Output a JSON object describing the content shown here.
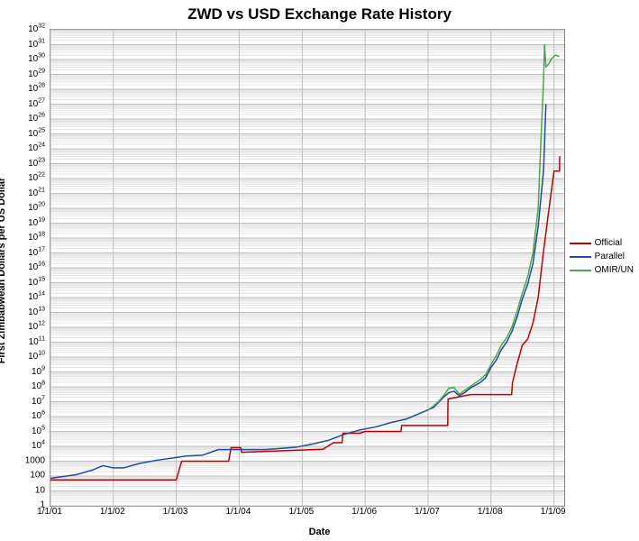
{
  "chart": {
    "type": "line",
    "title": "ZWD vs USD Exchange Rate History",
    "title_fontsize": 17,
    "title_fontweight": "bold",
    "xlabel": "Date",
    "ylabel": "First Zimbabwean Dollars per US Dollar",
    "label_fontsize": 11,
    "label_fontweight": "bold",
    "tick_fontsize": 10,
    "background_color": "#ffffff",
    "plot_border_color": "#808080",
    "grid_color_major": "#bfbfbf",
    "grid_color_minor": "#e6e6e6",
    "x_axis": {
      "type": "date",
      "min": "2001-01-01",
      "max": "2009-03-01",
      "ticks": [
        "1/1/01",
        "1/1/02",
        "1/1/03",
        "1/1/04",
        "1/1/05",
        "1/1/06",
        "1/1/07",
        "1/1/08",
        "1/1/09"
      ],
      "tick_dates": [
        "2001-01-01",
        "2002-01-01",
        "2003-01-01",
        "2004-01-01",
        "2005-01-01",
        "2006-01-01",
        "2007-01-01",
        "2008-01-01",
        "2009-01-01"
      ]
    },
    "y_axis": {
      "type": "log",
      "min_exp": 0,
      "max_exp": 32,
      "tick_exps": [
        0,
        1,
        2,
        3,
        4,
        5,
        6,
        7,
        8,
        9,
        10,
        11,
        12,
        13,
        14,
        15,
        16,
        17,
        18,
        19,
        20,
        21,
        22,
        23,
        24,
        25,
        26,
        27,
        28,
        29,
        30,
        31,
        32
      ],
      "tick_labels": [
        "1",
        "10",
        "100",
        "1000",
        "10^4",
        "10^5",
        "10^6",
        "10^7",
        "10^8",
        "10^9",
        "10^10",
        "10^11",
        "10^12",
        "10^13",
        "10^14",
        "10^15",
        "10^16",
        "10^17",
        "10^18",
        "10^19",
        "10^20",
        "10^21",
        "10^22",
        "10^23",
        "10^24",
        "10^25",
        "10^26",
        "10^27",
        "10^28",
        "10^29",
        "10^30",
        "10^31",
        "10^32"
      ]
    },
    "legend": {
      "position": "right",
      "items": [
        {
          "label": "Official",
          "color": "#c00000"
        },
        {
          "label": "Parallel",
          "color": "#1f4e9c"
        },
        {
          "label": "OMIR/UN",
          "color": "#4ca64c"
        }
      ]
    },
    "series": [
      {
        "name": "Official",
        "color": "#c00000",
        "line_width": 1.5,
        "points": [
          [
            "2001-01-01",
            1.74
          ],
          [
            "2003-01-01",
            1.74
          ],
          [
            "2003-02-01",
            3.0
          ],
          [
            "2003-11-01",
            3.0
          ],
          [
            "2003-11-15",
            3.91
          ],
          [
            "2004-01-10",
            3.91
          ],
          [
            "2004-01-15",
            3.6
          ],
          [
            "2005-05-01",
            3.8
          ],
          [
            "2005-07-01",
            4.24
          ],
          [
            "2005-08-20",
            4.24
          ],
          [
            "2005-08-25",
            4.88
          ],
          [
            "2005-12-01",
            4.88
          ],
          [
            "2006-01-01",
            5.0
          ],
          [
            "2006-04-01",
            5.0
          ],
          [
            "2006-04-15",
            5.0
          ],
          [
            "2006-07-28",
            5.0
          ],
          [
            "2006-08-01",
            5.4
          ],
          [
            "2007-04-01",
            5.4
          ],
          [
            "2007-04-25",
            5.4
          ],
          [
            "2007-04-27",
            7.18
          ],
          [
            "2007-09-06",
            7.48
          ],
          [
            "2008-04-30",
            7.48
          ],
          [
            "2008-05-05",
            8.28
          ],
          [
            "2008-06-01",
            9.56
          ],
          [
            "2008-07-01",
            10.8
          ],
          [
            "2008-08-01",
            11.2
          ],
          [
            "2008-09-01",
            12.3
          ],
          [
            "2008-10-01",
            14.0
          ],
          [
            "2008-11-01",
            17.1
          ],
          [
            "2008-12-01",
            19.8
          ],
          [
            "2009-01-01",
            22.5
          ],
          [
            "2009-02-02",
            22.5
          ],
          [
            "2009-02-03",
            23.5
          ]
        ]
      },
      {
        "name": "Parallel",
        "color": "#1f4e9c",
        "line_width": 1.5,
        "points": [
          [
            "2001-01-01",
            1.85
          ],
          [
            "2001-06-01",
            2.1
          ],
          [
            "2001-09-01",
            2.4
          ],
          [
            "2001-11-01",
            2.7
          ],
          [
            "2002-01-01",
            2.55
          ],
          [
            "2002-03-01",
            2.55
          ],
          [
            "2002-06-01",
            2.85
          ],
          [
            "2002-09-01",
            3.05
          ],
          [
            "2002-12-01",
            3.2
          ],
          [
            "2003-03-01",
            3.35
          ],
          [
            "2003-06-01",
            3.4
          ],
          [
            "2003-09-01",
            3.78
          ],
          [
            "2004-01-01",
            3.78
          ],
          [
            "2004-06-01",
            3.78
          ],
          [
            "2004-12-01",
            3.95
          ],
          [
            "2005-03-01",
            4.15
          ],
          [
            "2005-06-01",
            4.4
          ],
          [
            "2005-09-01",
            4.8
          ],
          [
            "2005-12-01",
            5.1
          ],
          [
            "2006-03-01",
            5.3
          ],
          [
            "2006-06-01",
            5.6
          ],
          [
            "2006-09-01",
            5.85
          ],
          [
            "2006-12-01",
            6.3
          ],
          [
            "2007-02-01",
            6.6
          ],
          [
            "2007-04-01",
            7.3
          ],
          [
            "2007-05-01",
            7.6
          ],
          [
            "2007-06-01",
            7.7
          ],
          [
            "2007-07-01",
            7.4
          ],
          [
            "2007-08-01",
            7.6
          ],
          [
            "2007-09-01",
            7.9
          ],
          [
            "2007-10-01",
            8.1
          ],
          [
            "2007-11-01",
            8.3
          ],
          [
            "2007-12-01",
            8.6
          ],
          [
            "2008-01-01",
            9.3
          ],
          [
            "2008-02-01",
            9.8
          ],
          [
            "2008-03-01",
            10.5
          ],
          [
            "2008-04-01",
            11.0
          ],
          [
            "2008-05-01",
            11.7
          ],
          [
            "2008-06-01",
            12.7
          ],
          [
            "2008-07-01",
            13.9
          ],
          [
            "2008-08-01",
            14.9
          ],
          [
            "2008-09-01",
            16.3
          ],
          [
            "2008-10-01",
            18.8
          ],
          [
            "2008-11-01",
            22.5
          ],
          [
            "2008-11-15",
            27.0
          ]
        ]
      },
      {
        "name": "OMIR/UN",
        "color": "#4ca64c",
        "line_width": 1.5,
        "points": [
          [
            "2007-01-01",
            6.45
          ],
          [
            "2007-02-01",
            6.7
          ],
          [
            "2007-03-01",
            7.0
          ],
          [
            "2007-04-01",
            7.4
          ],
          [
            "2007-05-01",
            7.9
          ],
          [
            "2007-06-01",
            7.95
          ],
          [
            "2007-07-01",
            7.5
          ],
          [
            "2007-08-01",
            7.75
          ],
          [
            "2007-09-01",
            8.0
          ],
          [
            "2007-10-01",
            8.25
          ],
          [
            "2007-11-01",
            8.5
          ],
          [
            "2007-12-01",
            8.8
          ],
          [
            "2008-01-01",
            9.5
          ],
          [
            "2008-02-01",
            10.1
          ],
          [
            "2008-03-01",
            10.8
          ],
          [
            "2008-04-01",
            11.3
          ],
          [
            "2008-05-01",
            12.0
          ],
          [
            "2008-06-01",
            13.1
          ],
          [
            "2008-07-01",
            14.3
          ],
          [
            "2008-08-01",
            15.4
          ],
          [
            "2008-09-01",
            17.0
          ],
          [
            "2008-10-01",
            20.0
          ],
          [
            "2008-10-15",
            24.0
          ],
          [
            "2008-11-01",
            28.5
          ],
          [
            "2008-11-07",
            31.0
          ],
          [
            "2008-11-15",
            29.5
          ],
          [
            "2008-12-01",
            29.7
          ],
          [
            "2008-12-20",
            30.1
          ],
          [
            "2009-01-10",
            30.3
          ],
          [
            "2009-02-01",
            30.2
          ]
        ]
      }
    ]
  }
}
